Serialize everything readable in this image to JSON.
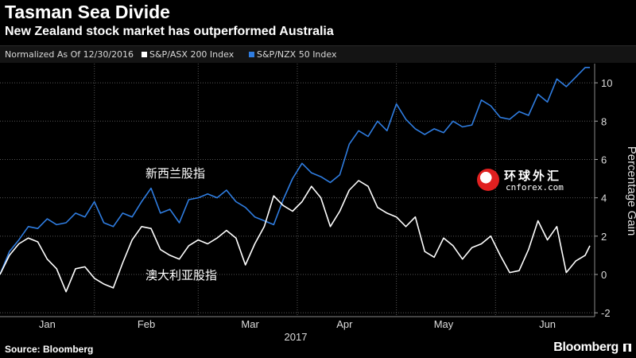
{
  "header": {
    "title": "Tasman Sea Divide",
    "subtitle": "New Zealand stock market has outperformed Australia"
  },
  "legend": {
    "note": "Normalized As Of 12/30/2016",
    "items": [
      {
        "label": "S&P/ASX 200 Index",
        "color": "#ffffff"
      },
      {
        "label": "S&P/NZX 50 Index",
        "color": "#2f7de1"
      }
    ]
  },
  "annotations": {
    "nzx": "新西兰股指",
    "asx": "澳大利亚股指"
  },
  "footer": {
    "source": "Source: Bloomberg",
    "brand": "Bloomberg"
  },
  "watermark": {
    "chinese": "环球外汇",
    "latin": "cnforex.com"
  },
  "chart_data": {
    "type": "line",
    "title": "Tasman Sea Divide",
    "subtitle": "New Zealand stock market has outperformed Australia",
    "xlabel": "2017",
    "ylabel": "Percentage Gain",
    "ylim": [
      -2,
      11
    ],
    "yticks": [
      -2,
      0,
      2,
      4,
      6,
      8,
      10
    ],
    "month_labels": [
      "Jan",
      "Feb",
      "Mar",
      "Apr",
      "May",
      "Jun"
    ],
    "x_range": [
      0,
      125
    ],
    "month_positions": [
      10,
      31,
      53,
      73,
      94,
      116
    ],
    "grid": true,
    "series": [
      {
        "name": "S&P/NZX 50 Index",
        "color": "#2f7de1",
        "x": [
          0,
          2,
          4,
          6,
          8,
          10,
          12,
          14,
          16,
          18,
          20,
          22,
          24,
          26,
          28,
          30,
          32,
          34,
          36,
          38,
          40,
          42,
          44,
          46,
          48,
          50,
          52,
          54,
          56,
          58,
          60,
          62,
          64,
          66,
          68,
          70,
          72,
          74,
          76,
          78,
          80,
          82,
          84,
          86,
          88,
          90,
          92,
          94,
          96,
          98,
          100,
          102,
          104,
          106,
          108,
          110,
          112,
          114,
          116,
          118,
          120,
          122,
          124,
          125
        ],
        "values": [
          0,
          1.2,
          1.8,
          2.5,
          2.4,
          2.9,
          2.6,
          2.7,
          3.2,
          3.0,
          3.8,
          2.7,
          2.5,
          3.2,
          3.0,
          3.8,
          4.5,
          3.2,
          3.4,
          2.7,
          3.9,
          4.0,
          4.2,
          4.0,
          4.4,
          3.8,
          3.5,
          3.0,
          2.8,
          2.6,
          3.9,
          5.0,
          5.8,
          5.3,
          5.1,
          4.8,
          5.2,
          6.8,
          7.5,
          7.2,
          8.0,
          7.5,
          8.9,
          8.1,
          7.6,
          7.3,
          7.6,
          7.4,
          8.0,
          7.7,
          7.8,
          9.1,
          8.8,
          8.2,
          8.1,
          8.5,
          8.3,
          9.4,
          9.0,
          10.2,
          9.8,
          10.3,
          10.8,
          10.8
        ]
      },
      {
        "name": "S&P/ASX 200 Index",
        "color": "#ffffff",
        "x": [
          0,
          2,
          4,
          6,
          8,
          10,
          12,
          14,
          16,
          18,
          20,
          22,
          24,
          26,
          28,
          30,
          32,
          34,
          36,
          38,
          40,
          42,
          44,
          46,
          48,
          50,
          52,
          54,
          56,
          58,
          60,
          62,
          64,
          66,
          68,
          70,
          72,
          74,
          76,
          78,
          80,
          82,
          84,
          86,
          88,
          90,
          92,
          94,
          96,
          98,
          100,
          102,
          104,
          106,
          108,
          110,
          112,
          114,
          116,
          118,
          120,
          122,
          124,
          125
        ],
        "values": [
          0,
          1.0,
          1.6,
          1.9,
          1.7,
          0.8,
          0.3,
          -0.9,
          0.3,
          0.4,
          -0.2,
          -0.5,
          -0.7,
          0.6,
          1.8,
          2.5,
          2.4,
          1.3,
          1.0,
          0.8,
          1.5,
          1.8,
          1.6,
          1.9,
          2.3,
          1.9,
          0.5,
          1.6,
          2.5,
          4.1,
          3.6,
          3.3,
          3.8,
          4.6,
          4.0,
          2.5,
          3.3,
          4.4,
          4.9,
          4.6,
          3.5,
          3.2,
          3.0,
          2.5,
          3.0,
          1.2,
          0.9,
          1.9,
          1.5,
          0.8,
          1.4,
          1.6,
          2.0,
          1.0,
          0.1,
          0.2,
          1.3,
          2.8,
          1.8,
          2.5,
          0.1,
          0.7,
          1.0,
          1.5
        ]
      }
    ]
  }
}
